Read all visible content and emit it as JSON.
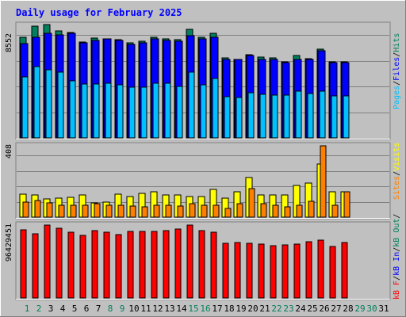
{
  "title": "Daily usage for February 2025",
  "colors": {
    "background": "#C0C0C0",
    "title": "#0000FF",
    "hits": "#00805C",
    "files": "#0000FF",
    "pages": "#00C0FF",
    "visits": "#FFFF00",
    "sites": "#FF8000",
    "kbytes": "#FF0000",
    "kbytes_out": "#00805C",
    "kbytes_in": "#0000FF",
    "weekday_label": "#0000FF",
    "weekend_label": "#00805C"
  },
  "chart_data": [
    {
      "type": "bar",
      "panel": "top",
      "ymax_label": "8552",
      "ylim": [
        0,
        8552
      ],
      "axis_legend": [
        "Pages",
        "Files",
        "Hits"
      ],
      "categories": [
        "1",
        "2",
        "3",
        "4",
        "5",
        "6",
        "7",
        "8",
        "9",
        "10",
        "11",
        "12",
        "13",
        "14",
        "15",
        "16",
        "17",
        "18",
        "19",
        "20",
        "21",
        "22",
        "23",
        "24",
        "25",
        "26",
        "27",
        "28"
      ],
      "series": [
        {
          "name": "Hits",
          "values": [
            7600,
            8450,
            8552,
            8100,
            7950,
            7250,
            7550,
            7500,
            7400,
            7200,
            7300,
            7600,
            7500,
            7400,
            8200,
            7600,
            7900,
            6050,
            5950,
            6250,
            6100,
            6050,
            5750,
            6200,
            6000,
            6700,
            5750,
            5750
          ]
        },
        {
          "name": "Files",
          "values": [
            7100,
            7600,
            7900,
            7750,
            7900,
            7150,
            7350,
            7450,
            7350,
            7050,
            7150,
            7500,
            7350,
            7300,
            7700,
            7450,
            7600,
            5950,
            5900,
            6200,
            5950,
            5900,
            5700,
            5950,
            5950,
            6550,
            5700,
            5700
          ]
        },
        {
          "name": "Pages",
          "values": [
            4600,
            5400,
            5150,
            4950,
            4300,
            4050,
            4050,
            4100,
            4000,
            3800,
            3850,
            4100,
            4100,
            3900,
            4950,
            4000,
            4500,
            3100,
            3050,
            3400,
            3300,
            3250,
            3200,
            3550,
            3350,
            3500,
            3150,
            3150
          ]
        }
      ]
    },
    {
      "type": "bar",
      "panel": "middle",
      "ymax_label": "408",
      "ylim": [
        0,
        408
      ],
      "axis_legend": [
        "Sites",
        "/",
        "Visits"
      ],
      "categories": [
        "1",
        "2",
        "3",
        "4",
        "5",
        "6",
        "7",
        "8",
        "9",
        "10",
        "11",
        "12",
        "13",
        "14",
        "15",
        "16",
        "17",
        "18",
        "19",
        "20",
        "21",
        "22",
        "23",
        "24",
        "25",
        "26",
        "27",
        "28"
      ],
      "series": [
        {
          "name": "Visits",
          "values": [
            130,
            125,
            105,
            110,
            115,
            125,
            80,
            85,
            130,
            120,
            135,
            145,
            125,
            125,
            120,
            120,
            160,
            110,
            145,
            225,
            125,
            125,
            125,
            180,
            195,
            305,
            145,
            145
          ]
        },
        {
          "name": "Sites",
          "values": [
            85,
            95,
            80,
            70,
            70,
            70,
            75,
            70,
            70,
            65,
            60,
            70,
            70,
            65,
            75,
            70,
            70,
            50,
            75,
            165,
            75,
            70,
            60,
            70,
            90,
            408,
            70,
            145
          ]
        }
      ]
    },
    {
      "type": "bar",
      "panel": "bottom",
      "ymax_label": "96429451",
      "ylim": [
        0,
        96429451
      ],
      "axis_legend": [
        "kB F",
        "/",
        "kB In",
        "/",
        "kB Out",
        "/"
      ],
      "categories": [
        "1",
        "2",
        "3",
        "4",
        "5",
        "6",
        "7",
        "8",
        "9",
        "10",
        "11",
        "12",
        "13",
        "14",
        "15",
        "16",
        "17",
        "18",
        "19",
        "20",
        "21",
        "22",
        "23",
        "24",
        "25",
        "26",
        "27",
        "28"
      ],
      "series": [
        {
          "name": "kB F",
          "values": [
            90000000,
            85000000,
            96429451,
            92000000,
            87000000,
            83000000,
            89000000,
            87000000,
            84000000,
            88000000,
            88000000,
            88000000,
            89000000,
            91000000,
            96000000,
            89000000,
            87000000,
            72000000,
            73000000,
            72000000,
            71000000,
            69000000,
            70000000,
            71000000,
            74000000,
            76000000,
            68000000,
            73000000
          ]
        }
      ]
    }
  ],
  "x_labels": [
    "1",
    "2",
    "3",
    "4",
    "5",
    "6",
    "7",
    "8",
    "9",
    "10",
    "11",
    "12",
    "13",
    "14",
    "15",
    "16",
    "17",
    "18",
    "19",
    "20",
    "21",
    "22",
    "23",
    "24",
    "25",
    "26",
    "27",
    "28",
    "29",
    "30",
    "31"
  ],
  "weekend_days": [
    1,
    2,
    8,
    9,
    15,
    16,
    22,
    23,
    29,
    30
  ]
}
